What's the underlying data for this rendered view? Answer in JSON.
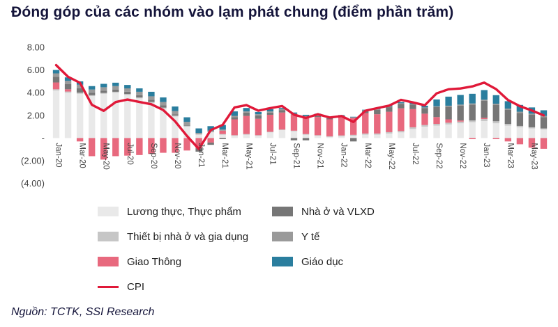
{
  "title": "Đóng góp của các nhóm vào lạm phát chung (điểm phần trăm)",
  "source": "Nguồn: TCTK, SSI Research",
  "colors": {
    "title_text": "#14143a",
    "axis_text": "#3f3f3f",
    "cpi_line": "#e01939",
    "background": "#ffffff"
  },
  "legend": {
    "items": [
      {
        "label": "Lương thực, Thực phẩm",
        "color": "#e9e9e9",
        "type": "box"
      },
      {
        "label": "Nhà ở và VLXD",
        "color": "#767676",
        "type": "box"
      },
      {
        "label": "Thiết bị nhà ở và gia dụng",
        "color": "#c6c6c6",
        "type": "box"
      },
      {
        "label": "Y tế",
        "color": "#9a9a9a",
        "type": "box"
      },
      {
        "label": "Giao Thông",
        "color": "#e8697e",
        "type": "box"
      },
      {
        "label": "Giáo dục",
        "color": "#2a7e9e",
        "type": "box"
      },
      {
        "label": "CPI",
        "color": "#e01939",
        "type": "line"
      }
    ]
  },
  "chart_data": {
    "type": "bar",
    "stacked": true,
    "title": "Đóng góp của các nhóm vào lạm phát chung (điểm phần trăm)",
    "xlabel": "",
    "ylabel": "",
    "ylim": [
      -4,
      8
    ],
    "grid": false,
    "legend_position": "bottom",
    "yticks": [
      {
        "value": 8,
        "label": "8.00"
      },
      {
        "value": 6,
        "label": "6.00"
      },
      {
        "value": 4,
        "label": "4.00"
      },
      {
        "value": 2,
        "label": "2.00"
      },
      {
        "value": 0,
        "label": "-"
      },
      {
        "value": -2,
        "label": "(2.00)"
      },
      {
        "value": -4,
        "label": "(4.00)"
      }
    ],
    "x_tick_every": 2,
    "categories": [
      "Jan-20",
      "Feb-20",
      "Mar-20",
      "Apr-20",
      "May-20",
      "Jun-20",
      "Jul-20",
      "Aug-20",
      "Sep-20",
      "Oct-20",
      "Nov-20",
      "Dec-20",
      "Jan-21",
      "Feb-21",
      "Mar-21",
      "Apr-21",
      "May-21",
      "Jun-21",
      "Jul-21",
      "Aug-21",
      "Sep-21",
      "Oct-21",
      "Nov-21",
      "Dec-21",
      "Jan-22",
      "Feb-22",
      "Mar-22",
      "Apr-22",
      "May-22",
      "Jun-22",
      "Jul-22",
      "Aug-22",
      "Sep-22",
      "Oct-22",
      "Nov-22",
      "Dec-22",
      "Jan-23",
      "Feb-23",
      "Mar-23",
      "Apr-23",
      "May-23",
      "Jun-23"
    ],
    "series": [
      {
        "name": "Lương thực, Thực phẩm",
        "color": "#e9e9e9",
        "values": [
          4.2,
          4.0,
          3.9,
          3.7,
          3.9,
          4.0,
          3.8,
          3.5,
          3.1,
          2.6,
          1.9,
          1.0,
          0.3,
          0.5,
          0.3,
          0.2,
          0.3,
          0.2,
          0.5,
          0.7,
          0.6,
          0.3,
          0.2,
          0.1,
          0.15,
          0.2,
          0.3,
          0.3,
          0.4,
          0.5,
          0.8,
          1.0,
          1.1,
          1.2,
          1.3,
          1.4,
          1.5,
          1.3,
          1.1,
          0.95,
          0.85,
          0.75
        ]
      },
      {
        "name": "Thiết bị nhà ở và gia dụng",
        "color": "#c6c6c6",
        "values": [
          0.1,
          0.1,
          0.1,
          0.08,
          0.08,
          0.08,
          0.08,
          0.08,
          0.08,
          0.08,
          0.08,
          0.08,
          0.05,
          0.05,
          0.05,
          0.05,
          0.05,
          0.05,
          0.05,
          0.05,
          0.05,
          0.05,
          0.05,
          0.05,
          0.08,
          0.08,
          0.1,
          0.1,
          0.12,
          0.12,
          0.15,
          0.15,
          0.15,
          0.15,
          0.15,
          0.15,
          0.18,
          0.18,
          0.15,
          0.12,
          0.1,
          0.1
        ]
      },
      {
        "name": "Giao Thông",
        "color": "#e8697e",
        "values": [
          0.6,
          0.2,
          -0.3,
          -1.6,
          -1.9,
          -1.6,
          -1.55,
          -1.5,
          -1.4,
          -1.3,
          -1.3,
          -1.1,
          -0.9,
          -0.4,
          0.3,
          1.4,
          1.6,
          1.45,
          1.5,
          1.5,
          1.4,
          1.5,
          1.6,
          1.5,
          1.6,
          1.5,
          1.8,
          1.7,
          1.8,
          2.0,
          1.6,
          1.0,
          0.6,
          0.3,
          0.1,
          -0.1,
          0.1,
          -0.1,
          -0.3,
          -0.55,
          -0.85,
          -0.95
        ]
      },
      {
        "name": "Nhà ở và VLXD",
        "color": "#767676",
        "values": [
          0.5,
          0.45,
          0.4,
          0.2,
          0.2,
          0.2,
          0.2,
          0.2,
          0.2,
          0.2,
          0.1,
          0.05,
          -0.3,
          -0.2,
          -0.1,
          0.2,
          0.3,
          0.3,
          0.2,
          0.2,
          -0.2,
          -0.2,
          0.1,
          0.1,
          0.1,
          -0.3,
          0.2,
          0.4,
          0.4,
          0.4,
          0.4,
          0.5,
          0.9,
          1.1,
          1.3,
          1.4,
          1.5,
          1.45,
          1.25,
          1.15,
          1.1,
          1.0
        ]
      },
      {
        "name": "Y tế",
        "color": "#9a9a9a",
        "values": [
          0.3,
          0.3,
          0.3,
          0.3,
          0.3,
          0.3,
          0.3,
          0.3,
          0.3,
          0.3,
          0.3,
          0.3,
          0.1,
          0.1,
          0.1,
          0.1,
          0.1,
          0.1,
          0.1,
          0.1,
          0.1,
          0.1,
          0.1,
          0.1,
          0.05,
          0.05,
          0.05,
          0.05,
          0.05,
          0.05,
          0.05,
          0.05,
          0.05,
          0.1,
          0.1,
          0.1,
          0.1,
          0.1,
          0.1,
          0.1,
          0.1,
          0.1
        ]
      },
      {
        "name": "Giáo dục",
        "color": "#2a7e9e",
        "values": [
          0.3,
          0.3,
          0.3,
          0.3,
          0.3,
          0.3,
          0.3,
          0.3,
          0.4,
          0.4,
          0.4,
          0.4,
          0.4,
          0.4,
          0.4,
          0.4,
          0.3,
          0.2,
          0.2,
          0.1,
          0.1,
          0.1,
          0.1,
          0.05,
          0.05,
          0.05,
          0.05,
          0.1,
          0.1,
          0.1,
          0.1,
          0.15,
          0.6,
          0.8,
          0.85,
          0.85,
          0.85,
          0.75,
          0.65,
          0.6,
          0.55,
          0.5
        ]
      }
    ],
    "line_series": {
      "name": "CPI",
      "color": "#e01939",
      "values": [
        6.43,
        5.4,
        4.87,
        2.93,
        2.4,
        3.17,
        3.39,
        3.18,
        2.98,
        2.47,
        1.48,
        0.19,
        -0.97,
        0.7,
        1.16,
        2.7,
        2.9,
        2.41,
        2.64,
        2.82,
        2.06,
        1.77,
        2.1,
        1.81,
        1.94,
        1.42,
        2.41,
        2.64,
        2.86,
        3.37,
        3.14,
        2.89,
        3.94,
        4.3,
        4.37,
        4.55,
        4.89,
        4.31,
        3.35,
        2.81,
        2.43,
        2.0
      ]
    }
  }
}
